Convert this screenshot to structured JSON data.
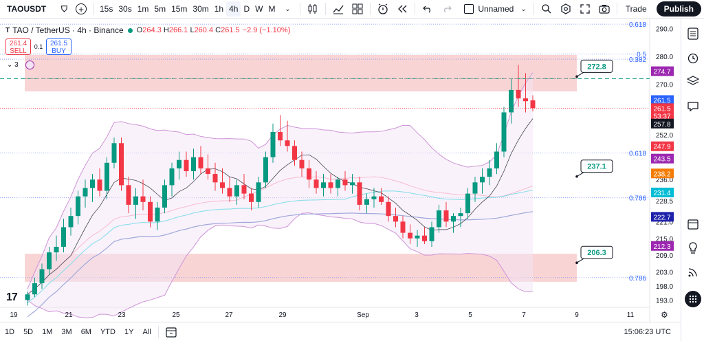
{
  "toolbar": {
    "symbol": "TAOUSDT",
    "intervals": [
      "15s",
      "30s",
      "1m",
      "5m",
      "15m",
      "30m",
      "1h",
      "4h",
      "D",
      "W",
      "M"
    ],
    "active_interval": "4h",
    "layout_name": "Unnamed",
    "trade_label": "Trade",
    "publish_label": "Publish"
  },
  "legend": {
    "title": "TAO / TetherUS · 4h · Binance",
    "open_label": "O",
    "open": "264.3",
    "high_label": "H",
    "high": "266.1",
    "low_label": "L",
    "low": "260.4",
    "close_label": "C",
    "close": "261.5",
    "change": "−2.9 (−1.10%)",
    "sell_price": "261.4",
    "sell_label": "SELL",
    "spread": "0.1",
    "buy_price": "261.5",
    "buy_label": "BUY",
    "indicators_count": "3"
  },
  "price_axis": {
    "ticks": [
      "290.0",
      "280.0",
      "270.0",
      "252.0",
      "236.0",
      "228.5",
      "221.0",
      "215.0",
      "209.0",
      "203.0",
      "198.0",
      "193.0"
    ],
    "fib_labels": [
      {
        "text": "0.618",
        "price": 291.5
      },
      {
        "text": "0.5",
        "price": 280.8
      },
      {
        "text": "0.382",
        "price": 279.0
      },
      {
        "text": "0.618",
        "price": 245.5
      },
      {
        "text": "0.786",
        "price": 229.5
      },
      {
        "text": "0.786",
        "price": 201.0
      }
    ],
    "badges": [
      {
        "text": "274.7",
        "price": 274.7,
        "color": "#9c27b0"
      },
      {
        "text": "261.5",
        "price": 264.4,
        "color": "#2962ff"
      },
      {
        "text": "261.5",
        "price": 261.5,
        "color": "#f23645"
      },
      {
        "text": "53:37",
        "price": 258.8,
        "color": "#f23645"
      },
      {
        "text": "257.8",
        "price": 256.0,
        "color": "#131722"
      },
      {
        "text": "247.9",
        "price": 247.9,
        "color": "#f23645"
      },
      {
        "text": "243.5",
        "price": 243.5,
        "color": "#9c27b0"
      },
      {
        "text": "238.2",
        "price": 238.2,
        "color": "#f57c00"
      },
      {
        "text": "231.4",
        "price": 231.4,
        "color": "#00bcd4"
      },
      {
        "text": "222.7",
        "price": 222.7,
        "color": "#1e22aa"
      },
      {
        "text": "212.3",
        "price": 212.3,
        "color": "#9c27b0"
      }
    ]
  },
  "time_axis": {
    "labels": [
      "19",
      "21",
      "23",
      "25",
      "27",
      "29",
      "Sep",
      "3",
      "5",
      "7",
      "9",
      "11"
    ]
  },
  "annotations": [
    {
      "text": "272.8",
      "price": 272.8
    },
    {
      "text": "237.1",
      "price": 237.1
    },
    {
      "text": "206.3",
      "price": 206.3
    }
  ],
  "zones": [
    {
      "name": "upper-resistance-zone",
      "top": 280.5,
      "bottom": 267.5
    },
    {
      "name": "lower-support-zone",
      "top": 209.5,
      "bottom": 199.5
    }
  ],
  "bottom_bar": {
    "ranges": [
      "1D",
      "5D",
      "1M",
      "3M",
      "6M",
      "YTD",
      "1Y",
      "All"
    ],
    "time": "15:06:23 UTC"
  },
  "colors": {
    "up": "#089981",
    "down": "#f23645",
    "zone": "#f7c6c6"
  },
  "chart_data": {
    "type": "candlestick",
    "series": [
      {
        "name": "TAOUSDT 4h",
        "ohlc": [
          [
            193,
            196,
            191,
            195
          ],
          [
            195,
            201,
            194,
            199
          ],
          [
            199,
            206,
            197,
            204
          ],
          [
            204,
            212,
            202,
            210
          ],
          [
            210,
            216,
            207,
            212
          ],
          [
            212,
            222,
            210,
            219
          ],
          [
            219,
            226,
            216,
            223
          ],
          [
            223,
            232,
            220,
            230
          ],
          [
            230,
            236,
            226,
            233
          ],
          [
            233,
            238,
            228,
            236
          ],
          [
            236,
            240,
            230,
            232
          ],
          [
            232,
            244,
            229,
            242
          ],
          [
            242,
            251,
            240,
            249
          ],
          [
            249,
            251,
            232,
            234
          ],
          [
            234,
            237,
            224,
            227
          ],
          [
            227,
            233,
            222,
            230
          ],
          [
            230,
            236,
            225,
            228
          ],
          [
            228,
            230,
            219,
            221
          ],
          [
            221,
            228,
            218,
            226
          ],
          [
            226,
            236,
            224,
            234
          ],
          [
            234,
            242,
            230,
            240
          ],
          [
            240,
            246,
            236,
            243
          ],
          [
            243,
            246,
            237,
            239
          ],
          [
            239,
            247,
            236,
            244
          ],
          [
            244,
            248,
            238,
            240
          ],
          [
            240,
            245,
            236,
            238
          ],
          [
            238,
            242,
            232,
            235
          ],
          [
            235,
            240,
            231,
            233
          ],
          [
            233,
            237,
            228,
            230
          ],
          [
            230,
            236,
            227,
            234
          ],
          [
            234,
            238,
            229,
            231
          ],
          [
            231,
            233,
            225,
            228
          ],
          [
            228,
            237,
            226,
            235
          ],
          [
            235,
            246,
            233,
            244
          ],
          [
            244,
            256,
            242,
            253
          ],
          [
            253,
            259,
            248,
            250
          ],
          [
            250,
            257,
            246,
            248
          ],
          [
            248,
            250,
            241,
            243
          ],
          [
            243,
            246,
            237,
            240
          ],
          [
            240,
            243,
            233,
            236
          ],
          [
            236,
            239,
            231,
            233
          ],
          [
            233,
            238,
            230,
            235
          ],
          [
            235,
            238,
            231,
            233
          ],
          [
            233,
            237,
            230,
            236
          ],
          [
            236,
            239,
            232,
            234
          ],
          [
            234,
            238,
            231,
            235
          ],
          [
            235,
            237,
            225,
            227
          ],
          [
            227,
            231,
            224,
            229
          ],
          [
            229,
            233,
            226,
            230
          ],
          [
            230,
            233,
            227,
            228
          ],
          [
            228,
            230,
            221,
            223
          ],
          [
            223,
            226,
            219,
            221
          ],
          [
            221,
            223,
            215,
            217
          ],
          [
            217,
            220,
            213,
            215
          ],
          [
            215,
            218,
            212,
            216
          ],
          [
            216,
            219,
            213,
            214
          ],
          [
            214,
            221,
            212,
            219
          ],
          [
            219,
            227,
            217,
            225
          ],
          [
            225,
            228,
            219,
            221
          ],
          [
            221,
            224,
            217,
            223
          ],
          [
            223,
            226,
            219,
            224
          ],
          [
            224,
            233,
            222,
            231
          ],
          [
            231,
            237,
            228,
            235
          ],
          [
            235,
            240,
            231,
            237
          ],
          [
            237,
            243,
            234,
            240
          ],
          [
            240,
            249,
            238,
            246
          ],
          [
            246,
            262,
            244,
            260
          ],
          [
            260,
            272,
            256,
            268
          ],
          [
            268,
            277,
            262,
            265
          ],
          [
            265,
            274,
            260,
            264
          ],
          [
            264.3,
            266.1,
            260.4,
            261.5
          ]
        ]
      }
    ],
    "ylim": [
      190,
      295
    ],
    "x_labels": [
      "19",
      "21",
      "23",
      "25",
      "27",
      "29",
      "Sep",
      "3",
      "5",
      "7",
      "9",
      "11"
    ]
  }
}
